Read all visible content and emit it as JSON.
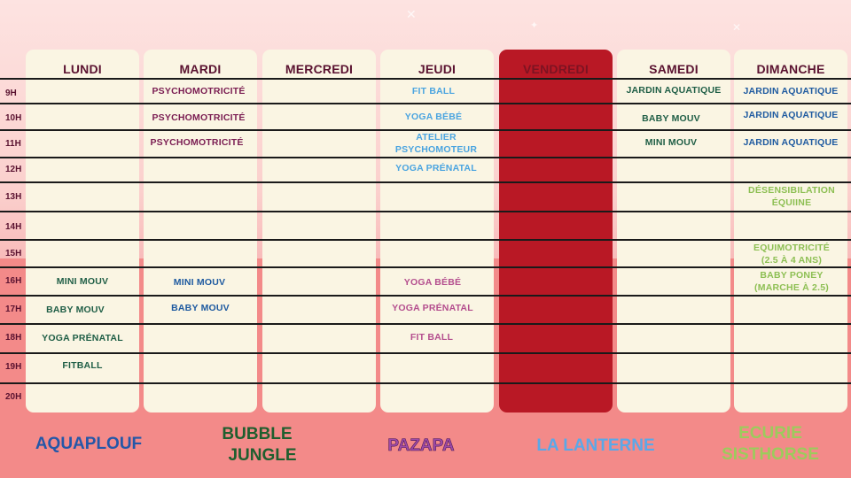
{
  "days": [
    {
      "label": "LUNDI"
    },
    {
      "label": "MARDI"
    },
    {
      "label": "MERCREDI"
    },
    {
      "label": "JEUDI"
    },
    {
      "label": "VENDREDI"
    },
    {
      "label": "SAMEDI"
    },
    {
      "label": "DIMANCHE"
    }
  ],
  "hours": [
    "9H",
    "10H",
    "11H",
    "12H",
    "13H",
    "14H",
    "15H",
    "16H",
    "17H",
    "18H",
    "19H",
    "20H"
  ],
  "activities": {
    "mardi_9": "PSYCHOMOTRICITÉ",
    "mardi_10": "PSYCHOMOTRICITÉ",
    "mardi_11": "PSYCHOMOTRICITÉ",
    "jeudi_9": "FIT BALL",
    "jeudi_10": "YOGA BÉBÉ",
    "jeudi_11a": "ATELIER",
    "jeudi_11b": "PSYCHOMOTEUR",
    "jeudi_12": "YOGA PRÉNATAL",
    "samedi_9": "JARDIN AQUATIQUE",
    "samedi_10": "BABY MOUV",
    "samedi_11": "MINI MOUV",
    "dimanche_9": "JARDIN AQUATIQUE",
    "dimanche_10": "JARDIN AQUATIQUE",
    "dimanche_11": "JARDIN AQUATIQUE",
    "dimanche_13a": "DÉSENSIBILATION",
    "dimanche_13b": "ÉQUIINE",
    "dimanche_15a": "EQUIMOTRICITÉ",
    "dimanche_15b": "(2.5 À 4 ANS)",
    "dimanche_16a": "BABY PONEY",
    "dimanche_16b": "(MARCHE À 2.5)",
    "lundi_16": "MINI MOUV",
    "lundi_17": "BABY MOUV",
    "lundi_18": "YOGA PRÉNATAL",
    "lundi_19": "FITBALL",
    "mardi_16": "MINI MOUV",
    "mardi_17": "BABY MOUV",
    "jeudi_16": "YOGA BÉBÉ",
    "jeudi_17": "YOGA PRÉNATAL",
    "jeudi_18": "FIT BALL"
  },
  "brands": {
    "aquaplouf": "AQUAPLOUF",
    "bubble_1": "BUBBLE",
    "bubble_2": "JUNGLE",
    "pazapa": "PAZAPA",
    "lanterne": "LA LANTERNE",
    "ecurie_1": "ECURIE",
    "ecurie_2": "SISTHORSE"
  },
  "colors": {
    "column_bg": "#faf5e3",
    "friday_highlight": "#b91825",
    "aquaplouf": "#2457a8",
    "bubble_jungle": "#1f5e2e",
    "pazapa": "#9e4aa8",
    "la_lanterne": "#5aa8e8",
    "ecurie_sisthorse": "#9ccb5c"
  }
}
